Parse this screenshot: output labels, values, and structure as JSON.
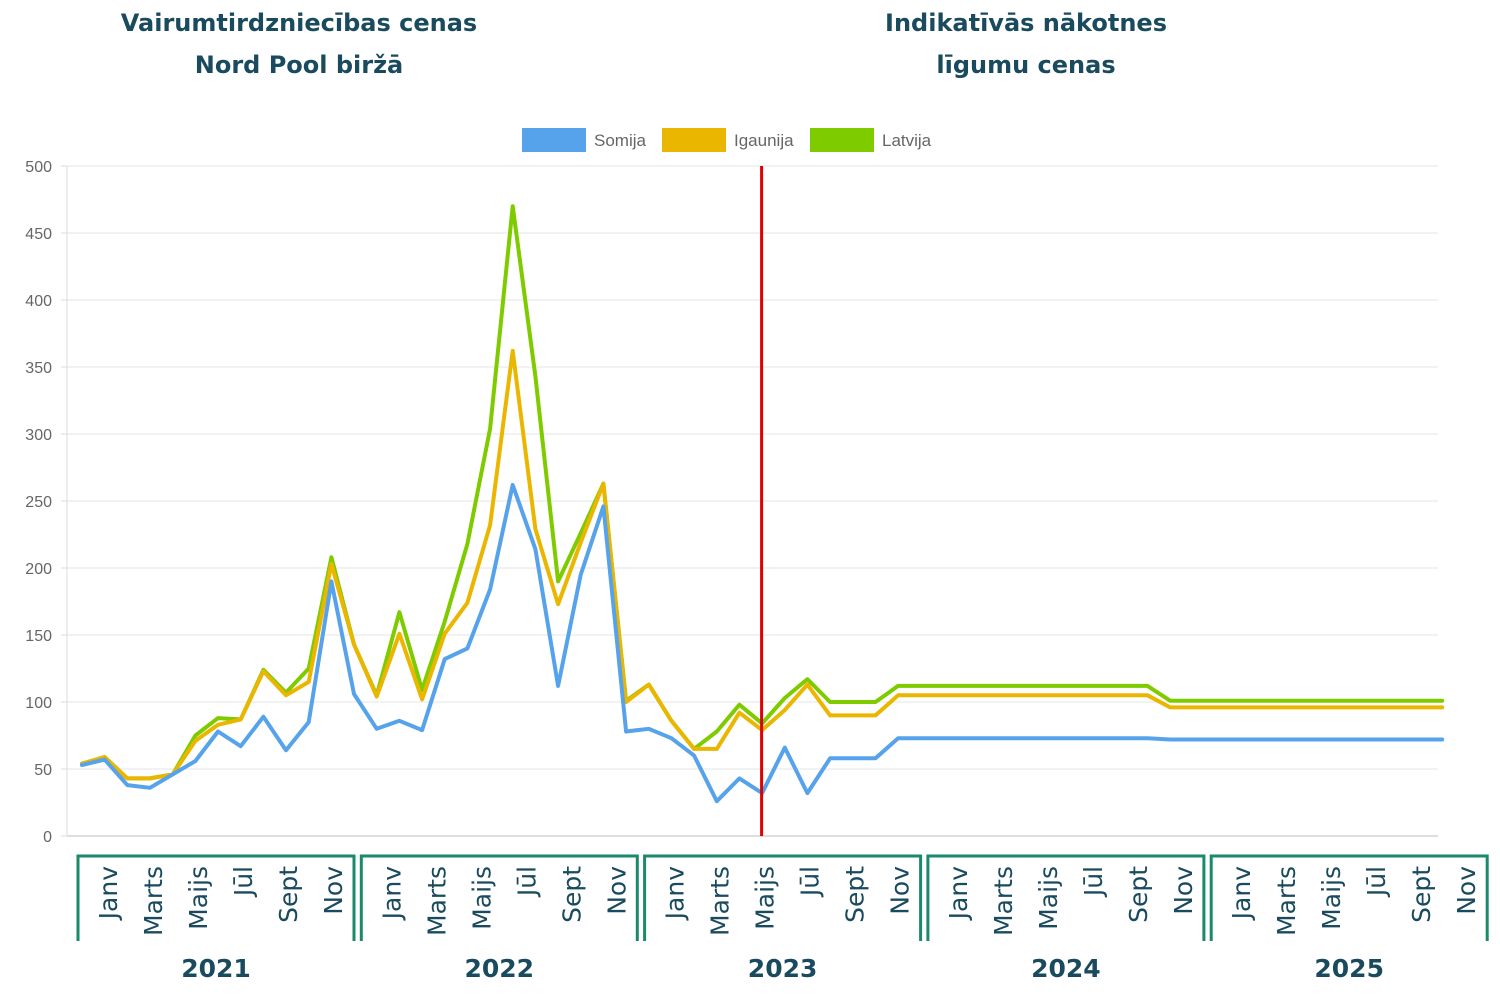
{
  "header": {
    "left_line1": "Vairumtirdzniecības cenas",
    "left_line2": "Nord Pool biržā",
    "right_line1": "Indikatīvās nākotnes",
    "right_line2": "līgumu cenas"
  },
  "chart_data": {
    "type": "line",
    "title": "",
    "xlabel": "",
    "ylabel": "",
    "ylim": [
      0,
      500
    ],
    "yticks": [
      0,
      50,
      100,
      150,
      200,
      250,
      300,
      350,
      400,
      450,
      500
    ],
    "grid": true,
    "legend_position": "top-center",
    "forecast_divider_index": 30,
    "divider_color": "#e00000",
    "month_labels": [
      "Janv",
      "Marts",
      "Maijs",
      "Jūl",
      "Sept",
      "Nov"
    ],
    "years": [
      "2021",
      "2022",
      "2023",
      "2024",
      "2025"
    ],
    "series": [
      {
        "name": "Somija",
        "color": "#56a3ec",
        "values": [
          53,
          57,
          38,
          36,
          46,
          56,
          78,
          67,
          89,
          64,
          85,
          190,
          106,
          80,
          86,
          79,
          132,
          140,
          184,
          262,
          214,
          112,
          195,
          246,
          78,
          80,
          73,
          60,
          26,
          43,
          32,
          66,
          32,
          58,
          58,
          58,
          73,
          73,
          73,
          73,
          73,
          73,
          73,
          73,
          73,
          73,
          73,
          73,
          72,
          72,
          72,
          72,
          72,
          72,
          72,
          72,
          72,
          72,
          72,
          72,
          72
        ]
      },
      {
        "name": "Igaunija",
        "color": "#eab600",
        "values": [
          54,
          59,
          43,
          43,
          46,
          71,
          83,
          87,
          123,
          105,
          115,
          203,
          143,
          104,
          151,
          102,
          151,
          174,
          232,
          362,
          229,
          173,
          219,
          263,
          100,
          113,
          86,
          65,
          65,
          92,
          79,
          94,
          113,
          90,
          90,
          90,
          105,
          105,
          105,
          105,
          105,
          105,
          105,
          105,
          105,
          105,
          105,
          105,
          96,
          96,
          96,
          96,
          96,
          96,
          96,
          96,
          96,
          96,
          96,
          96,
          96
        ]
      },
      {
        "name": "Latvija",
        "color": "#7ecb00",
        "values": [
          54,
          58,
          43,
          43,
          46,
          75,
          88,
          87,
          124,
          107,
          125,
          208,
          143,
          105,
          167,
          109,
          160,
          218,
          304,
          470,
          343,
          190,
          226,
          263,
          101,
          113,
          86,
          65,
          78,
          98,
          84,
          103,
          117,
          100,
          100,
          100,
          112,
          112,
          112,
          112,
          112,
          112,
          112,
          112,
          112,
          112,
          112,
          112,
          101,
          101,
          101,
          101,
          101,
          101,
          101,
          101,
          101,
          101,
          101,
          101,
          101
        ]
      }
    ]
  }
}
